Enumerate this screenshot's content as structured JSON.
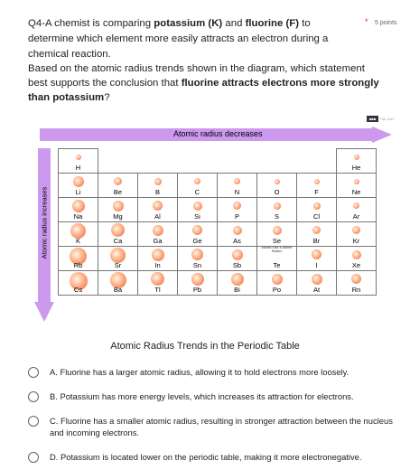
{
  "question": {
    "prefix": "Q4-A chemist is comparing ",
    "bold1": "potassium (K)",
    "mid1": " and ",
    "bold2": "fluorine (F)",
    "mid2": " to determine which element more easily attracts an electron during a chemical reaction.",
    "required_mark": "*",
    "points": "5 points",
    "body_prefix": "Based on the atomic radius trends shown in the  diagram, which statement best supports the conclusion that ",
    "body_bold": "fluorine attracts electrons more strongly than potassium",
    "body_suffix": "?"
  },
  "figure": {
    "logo_block": "■■■",
    "logo_text": "The Joel",
    "horizontal_label": "Atomic radius decreases",
    "vertical_label": "Atomic radius increases",
    "inset_label": "Atomic Size & Atomic Radius",
    "rows": [
      [
        {
          "s": "H",
          "r": 0.3
        },
        null,
        null,
        null,
        null,
        null,
        null,
        {
          "s": "He",
          "r": 0.22
        }
      ],
      [
        {
          "s": "Li",
          "r": 0.6
        },
        {
          "s": "Be",
          "r": 0.45
        },
        {
          "s": "B",
          "r": 0.4
        },
        {
          "s": "C",
          "r": 0.36
        },
        {
          "s": "N",
          "r": 0.34
        },
        {
          "s": "O",
          "r": 0.32
        },
        {
          "s": "F",
          "r": 0.3
        },
        {
          "s": "Ne",
          "r": 0.28
        }
      ],
      [
        {
          "s": "Na",
          "r": 0.72
        },
        {
          "s": "Mg",
          "r": 0.6
        },
        {
          "s": "Al",
          "r": 0.55
        },
        {
          "s": "Si",
          "r": 0.48
        },
        {
          "s": "P",
          "r": 0.44
        },
        {
          "s": "S",
          "r": 0.42
        },
        {
          "s": "Cl",
          "r": 0.38
        },
        {
          "s": "Ar",
          "r": 0.36
        }
      ],
      [
        {
          "s": "K",
          "r": 0.86
        },
        {
          "s": "Ca",
          "r": 0.74
        },
        {
          "s": "Ga",
          "r": 0.6
        },
        {
          "s": "Ge",
          "r": 0.56
        },
        {
          "s": "As",
          "r": 0.52
        },
        {
          "s": "Se",
          "r": 0.5
        },
        {
          "s": "Br",
          "r": 0.46
        },
        {
          "s": "Kr",
          "r": 0.44
        }
      ],
      [
        {
          "s": "Rb",
          "r": 0.94
        },
        {
          "s": "Sr",
          "r": 0.84
        },
        {
          "s": "In",
          "r": 0.7
        },
        {
          "s": "Sn",
          "r": 0.66
        },
        {
          "s": "Sb",
          "r": 0.62
        },
        {
          "s": "Te",
          "r": 0.58
        },
        {
          "s": "I",
          "r": 0.54
        },
        {
          "s": "Xe",
          "r": 0.5
        }
      ],
      [
        {
          "s": "Cs",
          "r": 1.0
        },
        {
          "s": "Ba",
          "r": 0.9
        },
        {
          "s": "Tl",
          "r": 0.74
        },
        {
          "s": "Pb",
          "r": 0.72
        },
        {
          "s": "Bi",
          "r": 0.7
        },
        {
          "s": "Po",
          "r": 0.62
        },
        {
          "s": "At",
          "r": 0.58
        },
        {
          "s": "Rn",
          "r": 0.56
        }
      ]
    ]
  },
  "caption": "Atomic Radius Trends in the Periodic Table",
  "options": [
    {
      "text": "A. Fluorine has a larger atomic radius, allowing it to hold electrons more loosely."
    },
    {
      "text": "B. Potassium has more energy levels, which increases its attraction for electrons."
    },
    {
      "text": "C. Fluorine has a smaller atomic radius, resulting in stronger attraction between the nucleus and incoming electrons."
    },
    {
      "text": "D. Potassium is located lower on the periodic table, making it more electronegative."
    }
  ]
}
